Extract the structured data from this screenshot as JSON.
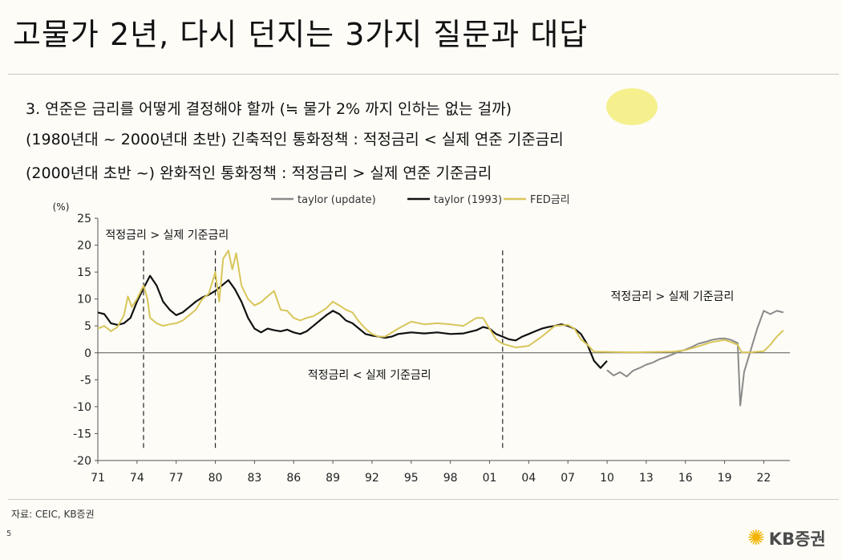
{
  "slide": {
    "title": "고물가 2년, 다시 던지는 3가지 질문과 대답",
    "line1": "3. 연준은 금리를 어떻게 결정해야 할까 (≒ 물가 2% 까지 인하는 없는 걸까)",
    "line2": "(1980년대 ~ 2000년대 초반)  긴축적인 통화정책 : 적정금리 < 실제 연준 기준금리",
    "line3": "(2000년대 초반 ~) 완화적인 통화정책 : 적정금리 > 실제 연준 기준금리",
    "source": "자료: CEIC, KB증권",
    "page_number": "5",
    "logo_text": "KB증권",
    "logo_mark": "✺"
  },
  "chart_data": {
    "type": "line",
    "yunit_label": "(%)",
    "ylim": [
      -20,
      25
    ],
    "yticks": [
      "25",
      "20",
      "15",
      "10",
      "5",
      "0",
      "-5",
      "-10",
      "-15",
      "-20"
    ],
    "xlim": [
      1971,
      2024
    ],
    "xticks": [
      "71",
      "74",
      "77",
      "80",
      "83",
      "86",
      "89",
      "92",
      "95",
      "98",
      "01",
      "04",
      "07",
      "10",
      "13",
      "16",
      "19",
      "22"
    ],
    "legend_position": "top",
    "grid": false,
    "vlines": [
      1974.5,
      1980,
      2002
    ],
    "annotations": [
      {
        "text": "적정금리 > 실제 기준금리",
        "x": 1976.3,
        "y": 21.2
      },
      {
        "text": "적정금리 > 실제 기준금리",
        "x": 2015.0,
        "y": 9.8
      },
      {
        "text": "적정금리 < 실제 기준금리",
        "x": 1991.8,
        "y": -4.8
      }
    ],
    "series": [
      {
        "name": "taylor (update)",
        "color": "#8a8a8a",
        "points": [
          [
            2010,
            -3.2
          ],
          [
            2010.5,
            -4.2
          ],
          [
            2011,
            -3.6
          ],
          [
            2011.5,
            -4.4
          ],
          [
            2012,
            -3.3
          ],
          [
            2012.5,
            -2.8
          ],
          [
            2013,
            -2.2
          ],
          [
            2013.5,
            -1.8
          ],
          [
            2014,
            -1.2
          ],
          [
            2014.5,
            -0.8
          ],
          [
            2015,
            -0.3
          ],
          [
            2015.5,
            0.2
          ],
          [
            2016,
            0.6
          ],
          [
            2016.5,
            1.1
          ],
          [
            2017,
            1.7
          ],
          [
            2017.5,
            2.0
          ],
          [
            2018,
            2.4
          ],
          [
            2018.5,
            2.6
          ],
          [
            2019,
            2.7
          ],
          [
            2019.5,
            2.4
          ],
          [
            2020,
            1.8
          ],
          [
            2020.2,
            -9.8
          ],
          [
            2020.5,
            -3.5
          ],
          [
            2021,
            0.5
          ],
          [
            2021.5,
            4.5
          ],
          [
            2022,
            7.8
          ],
          [
            2022.5,
            7.2
          ],
          [
            2023,
            7.8
          ],
          [
            2023.5,
            7.5
          ]
        ]
      },
      {
        "name": "taylor (1993)",
        "color": "#111111",
        "points": [
          [
            1971,
            7.5
          ],
          [
            1971.5,
            7.2
          ],
          [
            1972,
            5.5
          ],
          [
            1972.5,
            5.2
          ],
          [
            1973,
            5.5
          ],
          [
            1973.5,
            6.5
          ],
          [
            1974,
            9.5
          ],
          [
            1974.5,
            12.0
          ],
          [
            1975,
            14.3
          ],
          [
            1975.5,
            12.5
          ],
          [
            1976,
            9.5
          ],
          [
            1976.5,
            8.0
          ],
          [
            1977,
            7.0
          ],
          [
            1977.5,
            7.5
          ],
          [
            1978,
            8.5
          ],
          [
            1978.5,
            9.5
          ],
          [
            1979,
            10.3
          ],
          [
            1979.5,
            10.8
          ],
          [
            1980,
            11.5
          ],
          [
            1980.5,
            12.5
          ],
          [
            1981,
            13.5
          ],
          [
            1981.5,
            11.8
          ],
          [
            1982,
            9.5
          ],
          [
            1982.5,
            6.5
          ],
          [
            1983,
            4.5
          ],
          [
            1983.5,
            3.8
          ],
          [
            1984,
            4.5
          ],
          [
            1984.5,
            4.2
          ],
          [
            1985,
            4.0
          ],
          [
            1985.5,
            4.3
          ],
          [
            1986,
            3.8
          ],
          [
            1986.5,
            3.5
          ],
          [
            1987,
            4.0
          ],
          [
            1987.5,
            5.0
          ],
          [
            1988,
            6.0
          ],
          [
            1988.5,
            7.0
          ],
          [
            1989,
            7.8
          ],
          [
            1989.5,
            7.2
          ],
          [
            1990,
            6.0
          ],
          [
            1990.5,
            5.5
          ],
          [
            1991,
            4.5
          ],
          [
            1991.5,
            3.5
          ],
          [
            1992,
            3.2
          ],
          [
            1992.5,
            3.0
          ],
          [
            1993,
            2.8
          ],
          [
            1993.5,
            3.0
          ],
          [
            1994,
            3.5
          ],
          [
            1995,
            3.8
          ],
          [
            1996,
            3.6
          ],
          [
            1997,
            3.8
          ],
          [
            1998,
            3.5
          ],
          [
            1999,
            3.6
          ],
          [
            2000,
            4.2
          ],
          [
            2000.5,
            4.8
          ],
          [
            2001,
            4.5
          ],
          [
            2001.5,
            3.5
          ],
          [
            2002,
            3.0
          ],
          [
            2002.5,
            2.5
          ],
          [
            2003,
            2.3
          ],
          [
            2003.5,
            3.0
          ],
          [
            2004,
            3.5
          ],
          [
            2004.5,
            4.0
          ],
          [
            2005,
            4.5
          ],
          [
            2005.5,
            4.8
          ],
          [
            2006,
            5.0
          ],
          [
            2006.5,
            5.3
          ],
          [
            2007,
            5.0
          ],
          [
            2007.5,
            4.5
          ],
          [
            2008,
            3.5
          ],
          [
            2008.5,
            1.5
          ],
          [
            2009,
            -1.5
          ],
          [
            2009.5,
            -2.8
          ],
          [
            2010,
            -1.5
          ]
        ]
      },
      {
        "name": "FED금리",
        "color": "#d8c65a",
        "points": [
          [
            1971,
            4.5
          ],
          [
            1971.5,
            5.0
          ],
          [
            1972,
            4.0
          ],
          [
            1972.5,
            4.8
          ],
          [
            1973,
            7.0
          ],
          [
            1973.3,
            10.5
          ],
          [
            1973.6,
            8.5
          ],
          [
            1974,
            10.0
          ],
          [
            1974.5,
            12.5
          ],
          [
            1974.8,
            10.0
          ],
          [
            1975,
            6.5
          ],
          [
            1975.5,
            5.5
          ],
          [
            1976,
            5.0
          ],
          [
            1976.5,
            5.3
          ],
          [
            1977,
            5.5
          ],
          [
            1977.5,
            6.0
          ],
          [
            1978,
            7.0
          ],
          [
            1978.5,
            8.0
          ],
          [
            1979,
            10.0
          ],
          [
            1979.5,
            11.0
          ],
          [
            1980,
            15.0
          ],
          [
            1980.3,
            9.5
          ],
          [
            1980.6,
            17.5
          ],
          [
            1981,
            19.0
          ],
          [
            1981.3,
            15.5
          ],
          [
            1981.6,
            18.5
          ],
          [
            1982,
            12.5
          ],
          [
            1982.5,
            10.0
          ],
          [
            1983,
            8.8
          ],
          [
            1983.5,
            9.4
          ],
          [
            1984,
            10.5
          ],
          [
            1984.5,
            11.5
          ],
          [
            1985,
            8.0
          ],
          [
            1985.5,
            7.8
          ],
          [
            1986,
            6.5
          ],
          [
            1986.5,
            6.0
          ],
          [
            1987,
            6.5
          ],
          [
            1987.5,
            6.8
          ],
          [
            1988,
            7.5
          ],
          [
            1988.5,
            8.3
          ],
          [
            1989,
            9.5
          ],
          [
            1989.5,
            8.8
          ],
          [
            1990,
            8.0
          ],
          [
            1990.5,
            7.5
          ],
          [
            1991,
            5.8
          ],
          [
            1991.5,
            4.5
          ],
          [
            1992,
            3.5
          ],
          [
            1992.5,
            3.0
          ],
          [
            1993,
            3.0
          ],
          [
            1994,
            4.5
          ],
          [
            1995,
            5.8
          ],
          [
            1996,
            5.3
          ],
          [
            1997,
            5.5
          ],
          [
            1998,
            5.3
          ],
          [
            1999,
            5.0
          ],
          [
            2000,
            6.5
          ],
          [
            2000.5,
            6.5
          ],
          [
            2001,
            4.5
          ],
          [
            2001.5,
            2.5
          ],
          [
            2002,
            1.7
          ],
          [
            2003,
            1.0
          ],
          [
            2004,
            1.3
          ],
          [
            2005,
            3.0
          ],
          [
            2006,
            5.0
          ],
          [
            2007,
            5.2
          ],
          [
            2007.5,
            4.5
          ],
          [
            2008,
            2.5
          ],
          [
            2008.5,
            1.5
          ],
          [
            2009,
            0.2
          ],
          [
            2012,
            0.1
          ],
          [
            2015,
            0.2
          ],
          [
            2016,
            0.5
          ],
          [
            2017,
            1.2
          ],
          [
            2018,
            2.0
          ],
          [
            2019,
            2.4
          ],
          [
            2019.5,
            2.0
          ],
          [
            2020,
            1.5
          ],
          [
            2020.3,
            0.1
          ],
          [
            2021,
            0.1
          ],
          [
            2022,
            0.3
          ],
          [
            2022.5,
            1.5
          ],
          [
            2023,
            3.0
          ],
          [
            2023.5,
            4.2
          ]
        ]
      }
    ]
  }
}
